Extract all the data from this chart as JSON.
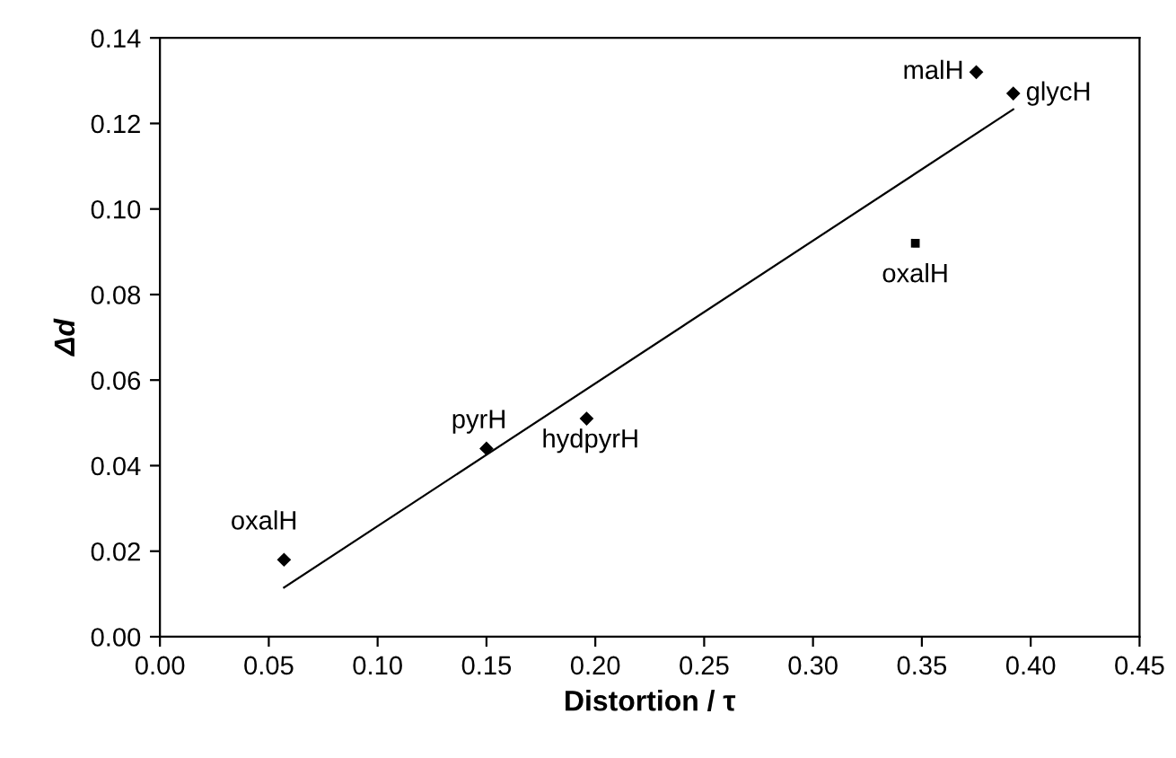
{
  "chart_data": {
    "type": "scatter",
    "xlabel": "Distortion / τ",
    "ylabel": "Δd",
    "xlim": [
      0.0,
      0.45
    ],
    "xticks": [
      {
        "value": 0.0,
        "label": "0.00"
      },
      {
        "value": 0.05,
        "label": "0.05"
      },
      {
        "value": 0.1,
        "label": "0.10"
      },
      {
        "value": 0.15,
        "label": "0.15"
      },
      {
        "value": 0.2,
        "label": "0.20"
      },
      {
        "value": 0.25,
        "label": "0.25"
      },
      {
        "value": 0.3,
        "label": "0.30"
      },
      {
        "value": 0.35,
        "label": "0.35"
      },
      {
        "value": 0.4,
        "label": "0.40"
      },
      {
        "value": 0.45,
        "label": "0.45"
      }
    ],
    "ylim": [
      0.0,
      0.14
    ],
    "yticks": [
      {
        "value": 0.0,
        "label": "0.00"
      },
      {
        "value": 0.02,
        "label": "0.02"
      },
      {
        "value": 0.04,
        "label": "0.04"
      },
      {
        "value": 0.06,
        "label": "0.06"
      },
      {
        "value": 0.08,
        "label": "0.08"
      },
      {
        "value": 0.1,
        "label": "0.10"
      },
      {
        "value": 0.12,
        "label": "0.12"
      },
      {
        "value": 0.14,
        "label": "0.14"
      }
    ],
    "grid": false,
    "series": [
      {
        "marker": "diamond",
        "color": "#000000",
        "x": [
          0.057,
          0.15,
          0.196,
          0.375,
          0.392
        ],
        "values": [
          0.018,
          0.044,
          0.051,
          0.132,
          0.127
        ]
      },
      {
        "marker": "square",
        "color": "#000000",
        "x": [
          0.347
        ],
        "values": [
          0.092
        ]
      },
      {
        "type": "line",
        "marker": "none",
        "line_style": "solid",
        "color": "#000000",
        "x": [
          0.057,
          0.392
        ],
        "values": [
          0.0115,
          0.1233
        ]
      }
    ],
    "annotations": [
      {
        "text": "oxalH",
        "x": 0.057,
        "y": 0.018
      },
      {
        "text": "pyrH",
        "x": 0.15,
        "y": 0.044
      },
      {
        "text": "hydpyrH",
        "x": 0.196,
        "y": 0.051
      },
      {
        "text": "malH",
        "x": 0.375,
        "y": 0.132
      },
      {
        "text": "glycH",
        "x": 0.392,
        "y": 0.127
      },
      {
        "text": "oxalH",
        "x": 0.347,
        "y": 0.092
      }
    ]
  }
}
